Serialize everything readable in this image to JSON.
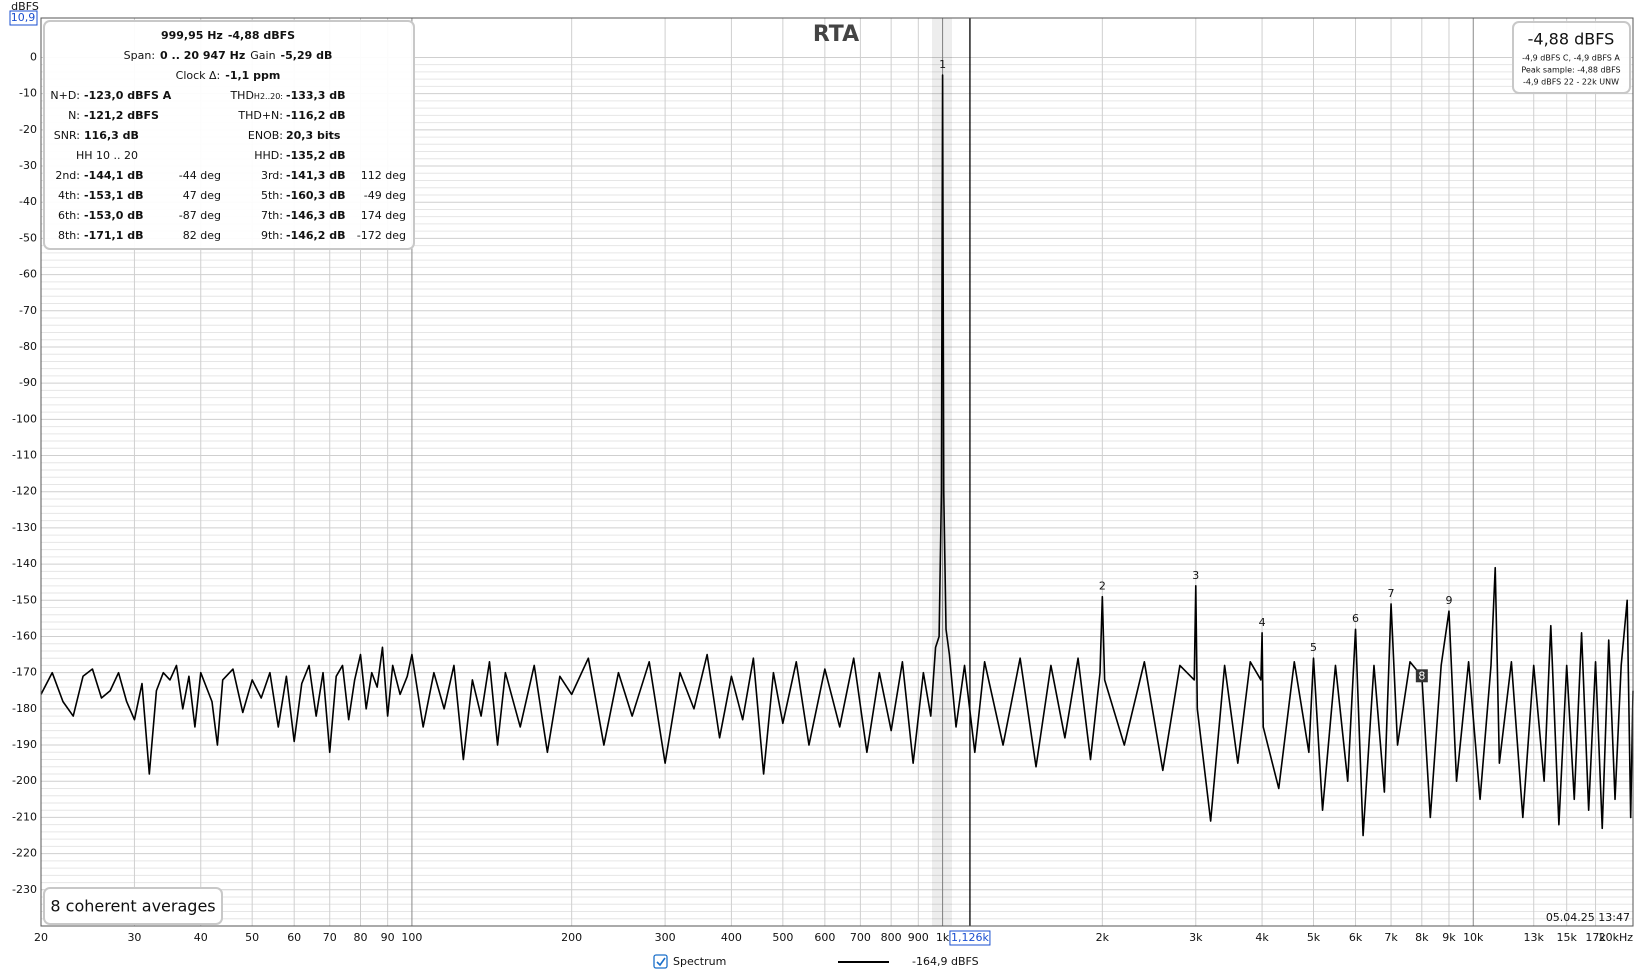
{
  "chart_data": {
    "type": "line",
    "title": "RTA",
    "y_label": "dBFS",
    "log_x": true,
    "grid": true,
    "y_minor_step": 2,
    "xlim": [
      20,
      20000
    ],
    "ylim": [
      -240,
      10.9
    ],
    "yticks": [
      {
        "value": 10.9,
        "label": "10,9"
      },
      0,
      -10,
      -20,
      -30,
      -40,
      -50,
      -60,
      -70,
      -80,
      -90,
      -100,
      -110,
      -120,
      -130,
      -140,
      -150,
      -160,
      -170,
      -180,
      -190,
      -200,
      -210,
      -220,
      -230
    ],
    "xticks": [
      20,
      30,
      40,
      50,
      60,
      70,
      80,
      90,
      100,
      200,
      300,
      400,
      500,
      600,
      700,
      800,
      900,
      {
        "value": 1000,
        "label": "1k"
      },
      {
        "value": 2000,
        "label": "2k"
      },
      {
        "value": 3000,
        "label": "3k"
      },
      {
        "value": 4000,
        "label": "4k"
      },
      {
        "value": 5000,
        "label": "5k"
      },
      {
        "value": 6000,
        "label": "6k"
      },
      {
        "value": 7000,
        "label": "7k"
      },
      {
        "value": 8000,
        "label": "8k"
      },
      {
        "value": 9000,
        "label": "9k"
      },
      {
        "value": 10000,
        "label": "10k"
      },
      {
        "value": 13000,
        "label": "13k"
      },
      {
        "value": 15000,
        "label": "15k"
      },
      {
        "value": 17000,
        "label": "17k"
      },
      {
        "value": 20000,
        "label": "20kHz"
      }
    ],
    "cursor": {
      "value": 1126,
      "label": "1,126k"
    },
    "x": [
      20,
      21,
      22,
      23,
      24,
      25,
      26,
      27,
      28,
      29,
      30,
      31,
      32,
      33,
      34,
      35,
      36,
      37,
      38,
      39,
      40,
      42,
      43,
      44,
      46,
      48,
      50,
      52,
      54,
      56,
      58,
      60,
      62,
      64,
      66,
      68,
      70,
      72,
      74,
      76,
      78,
      80,
      82,
      84,
      86,
      88,
      90,
      92,
      95,
      98,
      100,
      105,
      110,
      115,
      120,
      125,
      130,
      135,
      140,
      145,
      150,
      160,
      170,
      180,
      190,
      200,
      215,
      230,
      245,
      260,
      280,
      300,
      320,
      340,
      360,
      380,
      400,
      420,
      440,
      460,
      480,
      500,
      530,
      560,
      600,
      640,
      680,
      720,
      760,
      800,
      840,
      880,
      920,
      950,
      970,
      985,
      995,
      1000,
      1005,
      1015,
      1030,
      1060,
      1100,
      1150,
      1200,
      1300,
      1400,
      1500,
      1600,
      1700,
      1800,
      1900,
      1980,
      2000,
      2020,
      2200,
      2400,
      2600,
      2800,
      2980,
      3000,
      3020,
      3200,
      3400,
      3600,
      3800,
      3980,
      4000,
      4020,
      4300,
      4600,
      4900,
      5000,
      5200,
      5500,
      5800,
      6000,
      6200,
      6500,
      6800,
      7000,
      7200,
      7600,
      8000,
      8300,
      8700,
      9000,
      9300,
      9800,
      10300,
      10800,
      11000,
      11200,
      11800,
      12400,
      13000,
      13600,
      14000,
      14500,
      15000,
      15500,
      16000,
      16500,
      17000,
      17500,
      18000,
      18500,
      19000,
      19500,
      19800,
      20000
    ],
    "series": [
      {
        "name": "Spectrum",
        "color": "#000000",
        "values": [
          -176,
          -170,
          -178,
          -182,
          -171,
          -169,
          -177,
          -175,
          -170,
          -178,
          -183,
          -173,
          -198,
          -175,
          -170,
          -172,
          -168,
          -180,
          -171,
          -185,
          -170,
          -178,
          -190,
          -172,
          -169,
          -181,
          -172,
          -177,
          -170,
          -185,
          -171,
          -189,
          -173,
          -168,
          -182,
          -170,
          -192,
          -171,
          -168,
          -183,
          -172,
          -165,
          -180,
          -170,
          -174,
          -163,
          -182,
          -168,
          -176,
          -171,
          -165,
          -185,
          -170,
          -180,
          -168,
          -194,
          -172,
          -182,
          -167,
          -190,
          -170,
          -185,
          -168,
          -192,
          -171,
          -176,
          -166,
          -190,
          -170,
          -182,
          -167,
          -195,
          -170,
          -180,
          -165,
          -188,
          -171,
          -183,
          -166,
          -198,
          -170,
          -184,
          -167,
          -190,
          -169,
          -185,
          -166,
          -192,
          -170,
          -186,
          -167,
          -195,
          -170,
          -182,
          -163,
          -160,
          -120,
          -4.88,
          -120,
          -158,
          -165,
          -185,
          -168,
          -192,
          -167,
          -190,
          -166,
          -196,
          -168,
          -188,
          -166,
          -194,
          -170,
          -149,
          -172,
          -190,
          -167,
          -197,
          -168,
          -172,
          -146,
          -180,
          -211,
          -168,
          -195,
          -167,
          -172,
          -159,
          -185,
          -202,
          -167,
          -192,
          -166,
          -208,
          -168,
          -200,
          -158,
          -215,
          -168,
          -203,
          -151,
          -190,
          -167,
          -171,
          -210,
          -168,
          -153,
          -200,
          -167,
          -205,
          -168,
          -141,
          -195,
          -167,
          -210,
          -168,
          -200,
          -157,
          -212,
          -168,
          -205,
          -159,
          -208,
          -167,
          -213,
          -161,
          -205,
          -168,
          -150,
          -210,
          -175
        ]
      }
    ],
    "legend": {
      "value": "-164,9 dBFS"
    },
    "markers": [
      {
        "label": "1",
        "x": 1000,
        "y": -4.88
      },
      {
        "label": "2",
        "x": 2000,
        "y": -149
      },
      {
        "label": "3",
        "x": 3000,
        "y": -146
      },
      {
        "label": "4",
        "x": 4000,
        "y": -159
      },
      {
        "label": "5",
        "x": 5000,
        "y": -166
      },
      {
        "label": "6",
        "x": 6000,
        "y": -158
      },
      {
        "label": "7",
        "x": 7000,
        "y": -151
      },
      {
        "label": "8",
        "x": 8000,
        "y": -171,
        "boxed": true
      },
      {
        "label": "9",
        "x": 9000,
        "y": -153
      }
    ],
    "info": {
      "header": [
        [
          "999,95 Hz",
          "-4,88 dBFS"
        ],
        [
          "Span:",
          "0 .. 20 947 Hz",
          "Gain",
          "-5,29 dB"
        ],
        [
          "Clock Δ:",
          "-1,1 ppm"
        ]
      ],
      "rows": [
        {
          "l1": "N+D:",
          "v1": "-123,0 dBFS A",
          "l2": "THD",
          "l2_sub": "H2..20:",
          "v2": "-133,3 dB"
        },
        {
          "l1": "N:",
          "v1": "-121,2 dBFS",
          "l2": "THD+N:",
          "v2": "-116,2 dB"
        },
        {
          "l1": "SNR:",
          "v1": "116,3 dB",
          "l2": "ENOB:",
          "v2": "20,3 bits"
        },
        {
          "note": "HH 10 .. 20",
          "l2": "HHD:",
          "v2": "-135,2 dB"
        },
        {
          "l1": "2nd:",
          "v1": "-144,1 dB",
          "p1": "-44 deg",
          "l2": "3rd:",
          "v2": "-141,3 dB",
          "p2": "112 deg"
        },
        {
          "l1": "4th:",
          "v1": "-153,1 dB",
          "p1": "47 deg",
          "l2": "5th:",
          "v2": "-160,3 dB",
          "p2": "-49 deg"
        },
        {
          "l1": "6th:",
          "v1": "-153,0 dB",
          "p1": "-87 deg",
          "l2": "7th:",
          "v2": "-146,3 dB",
          "p2": "174 deg"
        },
        {
          "l1": "8th:",
          "v1": "-171,1 dB",
          "p1": "82 deg",
          "l2": "9th:",
          "v2": "-146,2 dB",
          "p2": "-172 deg"
        }
      ]
    },
    "level_box": {
      "main": "-4,88 dBFS",
      "lines": [
        "-4,9 dBFS C, -4,9 dBFS A",
        "Peak sample: -4,88 dBFS",
        "-4,9 dBFS 22 - 22k UNW"
      ]
    },
    "averages": "8 coherent averages",
    "timestamp": "05.04.25 13:47"
  }
}
